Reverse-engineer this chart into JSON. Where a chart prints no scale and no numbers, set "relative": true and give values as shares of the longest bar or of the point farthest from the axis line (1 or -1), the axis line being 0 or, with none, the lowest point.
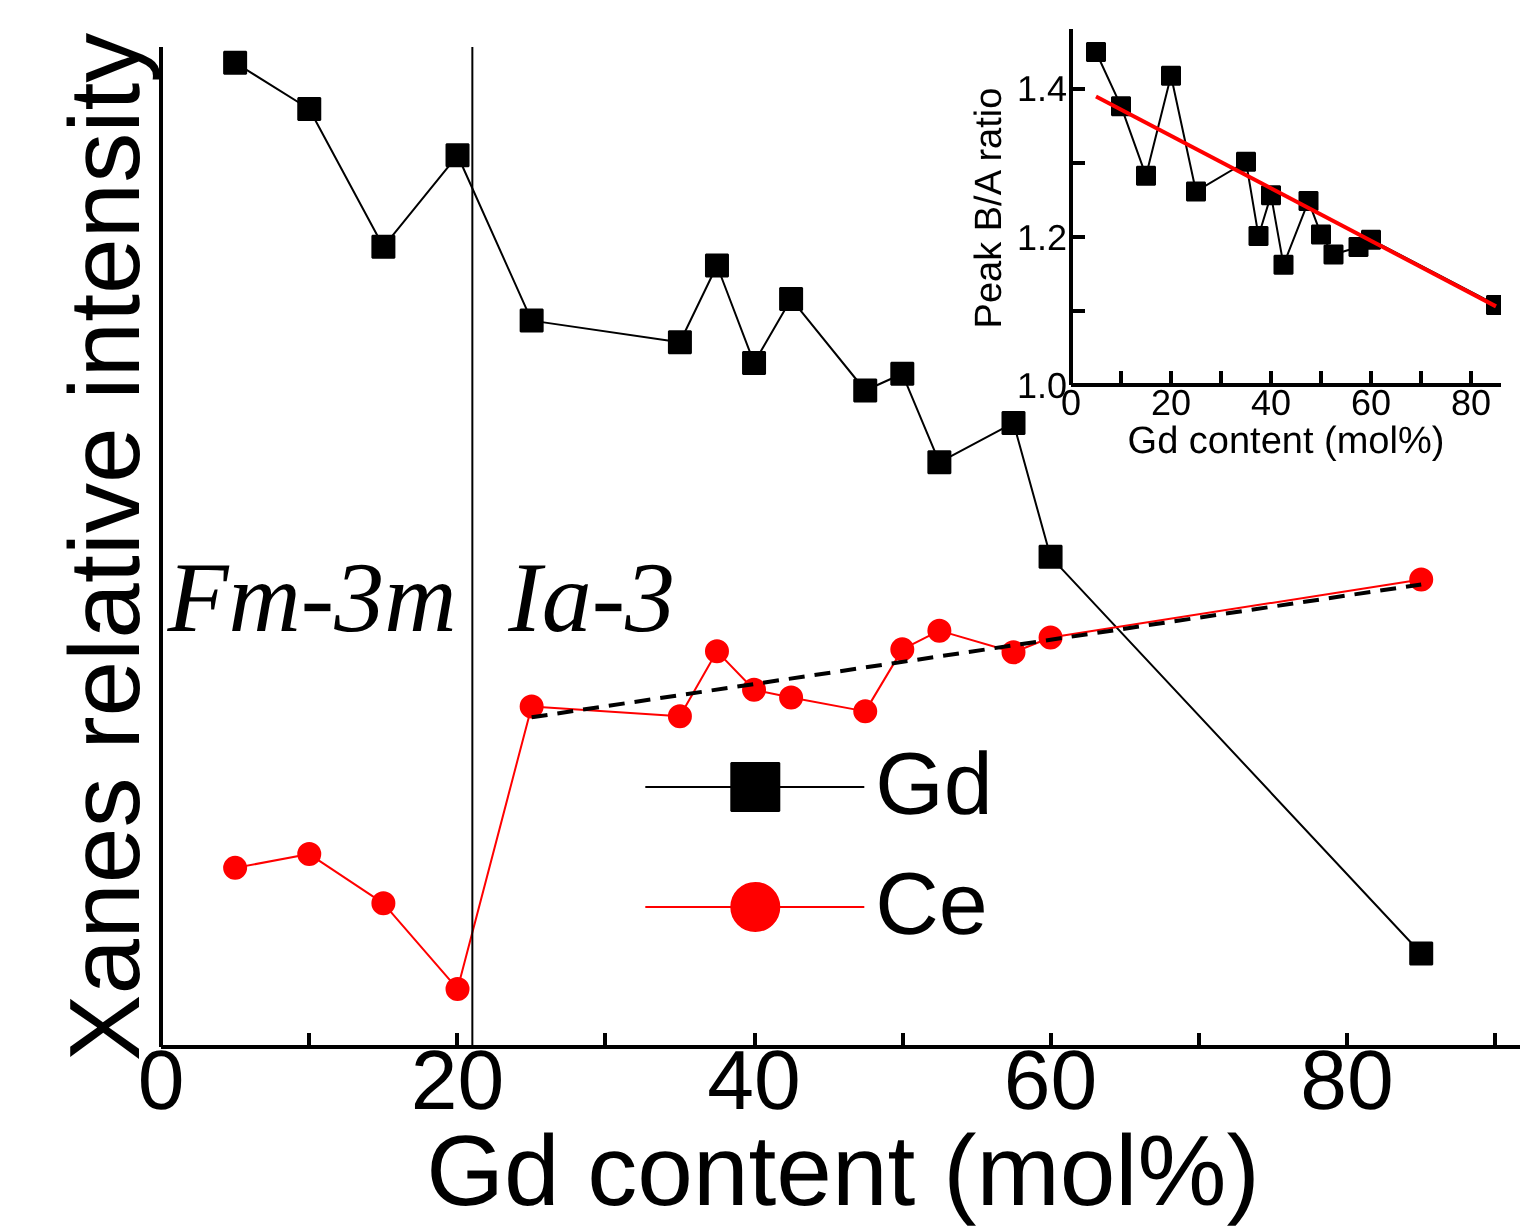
{
  "chart_data": [
    {
      "type": "line",
      "relative": true,
      "tick_labels": "x",
      "xlabel": "Gd content (mol%)",
      "ylabel": "Xanes relative intensity",
      "xlim": [
        0,
        92
      ],
      "xticks": [
        0,
        {
          "value": 10,
          "label": null
        },
        20,
        {
          "value": 30,
          "label": null
        },
        40,
        {
          "value": 50,
          "label": null
        },
        60,
        {
          "value": 70,
          "label": null
        },
        80,
        {
          "value": 90,
          "label": null
        }
      ],
      "legend": "bottom",
      "x": [
        5,
        10,
        15,
        20,
        25,
        35,
        37.5,
        40,
        42.5,
        47.5,
        50,
        52.5,
        57.5,
        60,
        85
      ],
      "ref_lines": [
        {
          "axis": "x",
          "value": 21,
          "color": "#000000"
        }
      ],
      "annotations": [
        "Fm-3m",
        "Ia-3"
      ],
      "series": [
        {
          "name": "Gd",
          "color": "#000000",
          "marker": "square",
          "values": [
            1.0,
            0.953,
            0.813,
            0.906,
            0.738,
            0.716,
            0.794,
            0.695,
            0.76,
            0.667,
            0.684,
            0.594,
            0.634,
            0.498,
            0.095
          ]
        },
        {
          "name": "Ce",
          "color": "#ff0000",
          "marker": "circle",
          "values": [
            0.182,
            0.196,
            0.146,
            0.059,
            0.346,
            0.336,
            0.402,
            0.363,
            0.355,
            0.341,
            0.404,
            0.423,
            0.401,
            0.416,
            0.475
          ]
        },
        {
          "color": "#000000",
          "marker": "none",
          "line_style": "dashed",
          "x": [
            25,
            85
          ],
          "values": [
            0.335,
            0.47
          ]
        }
      ]
    },
    {
      "type": "line",
      "xlabel": "Gd content (mol%)",
      "ylabel": "Peak B/A ratio",
      "xlim": [
        0,
        86
      ],
      "ylim": [
        1.0,
        1.48
      ],
      "xticks": [
        0,
        {
          "value": 10,
          "label": null
        },
        20,
        {
          "value": 30,
          "label": null
        },
        40,
        {
          "value": 50,
          "label": null
        },
        60,
        {
          "value": 70,
          "label": null
        },
        80
      ],
      "yticks": [
        {
          "value": 1.0,
          "label": "1.0"
        },
        {
          "value": 1.1,
          "label": null
        },
        {
          "value": 1.2,
          "label": "1.2"
        },
        {
          "value": 1.3,
          "label": null
        },
        {
          "value": 1.4,
          "label": "1.4"
        }
      ],
      "x": [
        5,
        10,
        15,
        20,
        25,
        35,
        37.5,
        40,
        42.5,
        47.5,
        50,
        52.5,
        57.5,
        60,
        85
      ],
      "series": [
        {
          "color": "#000000",
          "marker": "square",
          "values": [
            1.449,
            1.376,
            1.282,
            1.417,
            1.261,
            1.301,
            1.201,
            1.256,
            1.162,
            1.248,
            1.203,
            1.176,
            1.186,
            1.196,
            1.108
          ]
        },
        {
          "color": "#ff0000",
          "marker": "none",
          "x": [
            5,
            85
          ],
          "values": [
            1.389,
            1.106
          ]
        }
      ]
    }
  ]
}
